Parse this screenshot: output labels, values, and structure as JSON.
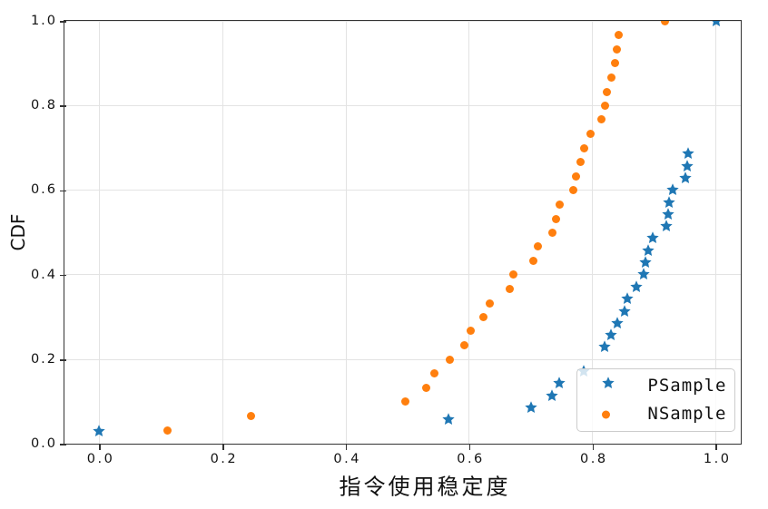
{
  "chart_data": {
    "type": "scatter",
    "title": "",
    "xlabel": "指令使用稳定度",
    "ylabel": "CDF",
    "xlim": [
      -0.056,
      1.041
    ],
    "ylim": [
      0,
      1
    ],
    "grid": true,
    "legend_position": "lower right",
    "x_ticks": {
      "values": [
        0.0,
        0.2,
        0.4,
        0.6,
        0.8,
        1.0
      ],
      "labels": [
        "0.0",
        "0.2",
        "0.4",
        "0.6",
        "0.8",
        "1.0"
      ]
    },
    "y_ticks": {
      "values": [
        0.0,
        0.2,
        0.4,
        0.6,
        0.8,
        1.0
      ],
      "labels": [
        "0.0",
        "0.2",
        "0.4",
        "0.6",
        "0.8",
        "1.0"
      ]
    },
    "series": [
      {
        "name": "PSample",
        "marker": "star",
        "color": "#1f77b4",
        "points": [
          [
            0.0,
            0.029
          ],
          [
            0.566,
            0.057
          ],
          [
            0.701,
            0.086
          ],
          [
            0.734,
            0.114
          ],
          [
            0.746,
            0.143
          ],
          [
            0.785,
            0.171
          ],
          [
            0.819,
            0.229
          ],
          [
            0.83,
            0.257
          ],
          [
            0.84,
            0.286
          ],
          [
            0.852,
            0.314
          ],
          [
            0.856,
            0.343
          ],
          [
            0.871,
            0.371
          ],
          [
            0.883,
            0.4
          ],
          [
            0.886,
            0.429
          ],
          [
            0.89,
            0.457
          ],
          [
            0.897,
            0.486
          ],
          [
            0.92,
            0.514
          ],
          [
            0.922,
            0.543
          ],
          [
            0.924,
            0.571
          ],
          [
            0.93,
            0.6
          ],
          [
            0.951,
            0.629
          ],
          [
            0.954,
            0.657
          ],
          [
            0.955,
            0.686
          ],
          [
            1.0,
            1.0
          ]
        ]
      },
      {
        "name": "NSample",
        "marker": "circle",
        "color": "#ff7f0e",
        "points": [
          [
            0.11,
            0.033
          ],
          [
            0.246,
            0.067
          ],
          [
            0.497,
            0.1
          ],
          [
            0.53,
            0.133
          ],
          [
            0.543,
            0.167
          ],
          [
            0.569,
            0.2
          ],
          [
            0.592,
            0.233
          ],
          [
            0.603,
            0.267
          ],
          [
            0.623,
            0.3
          ],
          [
            0.634,
            0.333
          ],
          [
            0.665,
            0.367
          ],
          [
            0.672,
            0.4
          ],
          [
            0.704,
            0.433
          ],
          [
            0.711,
            0.467
          ],
          [
            0.735,
            0.5
          ],
          [
            0.741,
            0.533
          ],
          [
            0.747,
            0.567
          ],
          [
            0.769,
            0.6
          ],
          [
            0.773,
            0.633
          ],
          [
            0.78,
            0.667
          ],
          [
            0.787,
            0.7
          ],
          [
            0.797,
            0.733
          ],
          [
            0.815,
            0.767
          ],
          [
            0.821,
            0.8
          ],
          [
            0.823,
            0.833
          ],
          [
            0.831,
            0.867
          ],
          [
            0.836,
            0.9
          ],
          [
            0.84,
            0.933
          ],
          [
            0.843,
            0.967
          ],
          [
            0.917,
            1.0
          ]
        ]
      }
    ]
  }
}
